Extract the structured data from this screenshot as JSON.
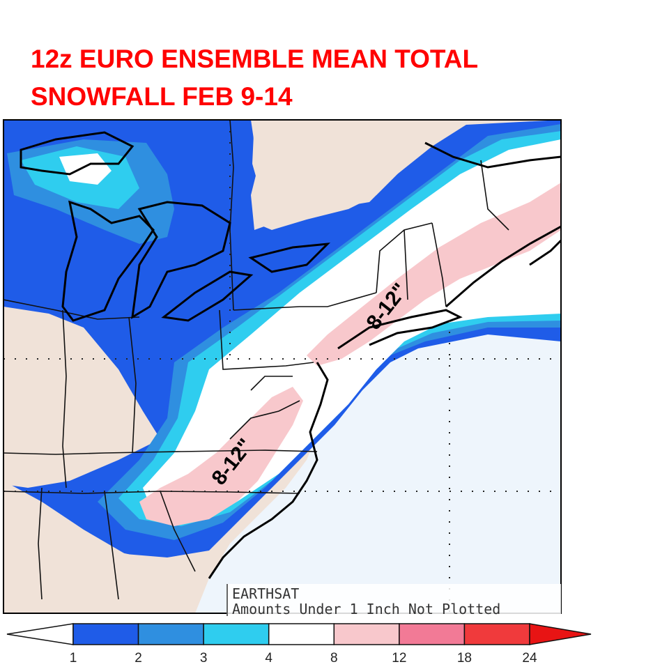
{
  "title": "12z  EURO  ENSEMBLE MEAN  TOTAL\nSNOWFALL FEB 9-14",
  "annotations": [
    {
      "text": "8-12\"",
      "region": "northeast"
    },
    {
      "text": "8-12\"",
      "region": "mid-atlantic"
    }
  ],
  "credit": {
    "source": "EARTHSAT",
    "note": "Amounts Under 1 Inch Not Plotted"
  },
  "colors": {
    "land": "#f0e2d8",
    "ocean": "#eef5fc",
    "snow_1_2": "#1f5ce8",
    "snow_2_3": "#2f8fe0",
    "snow_3_4": "#2fcdef",
    "snow_4_8": "#ffffff",
    "snow_8_12": "#f8c8cc",
    "snow_12_18": "#f27a96",
    "snow_18_24": "#f03a3c",
    "snow_24_plus": "#e81414",
    "title": "#ff0000"
  },
  "legend": {
    "ticks": [
      "1",
      "2",
      "3",
      "4",
      "8",
      "12",
      "18",
      "24"
    ],
    "bins": [
      {
        "from": "1",
        "to": "2",
        "color": "#1f5ce8"
      },
      {
        "from": "2",
        "to": "3",
        "color": "#2f8fe0"
      },
      {
        "from": "3",
        "to": "4",
        "color": "#2fcdef"
      },
      {
        "from": "4",
        "to": "8",
        "color": "#ffffff"
      },
      {
        "from": "8",
        "to": "12",
        "color": "#f8c8cc"
      },
      {
        "from": "12",
        "to": "18",
        "color": "#f27a96"
      },
      {
        "from": "18",
        "to": "24",
        "color": "#f03a3c"
      }
    ]
  }
}
